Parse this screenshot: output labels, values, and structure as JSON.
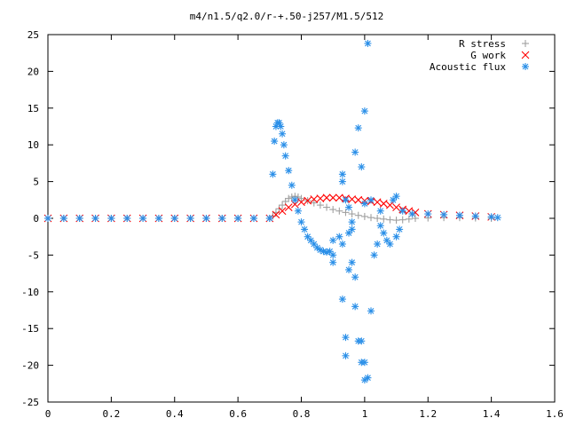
{
  "chart_data": {
    "type": "scatter",
    "title": "m4/n1.5/q2.0/r-+.50-j257/M1.5/512",
    "xlabel": "",
    "ylabel": "",
    "xlim": [
      0,
      1.6
    ],
    "ylim": [
      -25,
      25
    ],
    "x_ticks": [
      "0",
      "0.2",
      "0.4",
      "0.6",
      "0.8",
      "1",
      "1.2",
      "1.4",
      "1.6"
    ],
    "y_ticks": [
      "25",
      "20",
      "15",
      "10",
      "5",
      "0",
      "-5",
      "-10",
      "-15",
      "-20",
      "-25"
    ],
    "x_tick_values": [
      0,
      0.2,
      0.4,
      0.6,
      0.8,
      1.0,
      1.2,
      1.4,
      1.6
    ],
    "y_tick_values": [
      25,
      20,
      15,
      10,
      5,
      0,
      -5,
      -10,
      -15,
      -20,
      -25
    ],
    "grid": false,
    "legend_position": "top-right",
    "series": [
      {
        "name": "R stress",
        "marker": "plus",
        "color": "#a0a0a0",
        "points": [
          [
            0.0,
            0.0
          ],
          [
            0.05,
            0.0
          ],
          [
            0.1,
            0.0
          ],
          [
            0.15,
            0.0
          ],
          [
            0.2,
            0.0
          ],
          [
            0.25,
            0.0
          ],
          [
            0.3,
            0.0
          ],
          [
            0.35,
            0.0
          ],
          [
            0.4,
            0.0
          ],
          [
            0.45,
            0.0
          ],
          [
            0.5,
            0.0
          ],
          [
            0.55,
            0.0
          ],
          [
            0.6,
            0.0
          ],
          [
            0.65,
            0.0
          ],
          [
            0.7,
            0.0
          ],
          [
            0.71,
            0.3
          ],
          [
            0.72,
            0.8
          ],
          [
            0.73,
            1.3
          ],
          [
            0.74,
            1.8
          ],
          [
            0.75,
            2.3
          ],
          [
            0.76,
            2.7
          ],
          [
            0.77,
            2.9
          ],
          [
            0.78,
            3.0
          ],
          [
            0.79,
            2.9
          ],
          [
            0.8,
            2.7
          ],
          [
            0.82,
            2.4
          ],
          [
            0.84,
            2.1
          ],
          [
            0.86,
            1.8
          ],
          [
            0.88,
            1.5
          ],
          [
            0.9,
            1.2
          ],
          [
            0.92,
            1.0
          ],
          [
            0.94,
            0.8
          ],
          [
            0.96,
            0.6
          ],
          [
            0.98,
            0.4
          ],
          [
            1.0,
            0.25
          ],
          [
            1.02,
            0.1
          ],
          [
            1.04,
            0.0
          ],
          [
            1.06,
            -0.1
          ],
          [
            1.08,
            -0.2
          ],
          [
            1.1,
            -0.25
          ],
          [
            1.12,
            -0.2
          ],
          [
            1.14,
            -0.1
          ],
          [
            1.16,
            0.0
          ],
          [
            1.2,
            0.05
          ],
          [
            1.25,
            0.1
          ],
          [
            1.3,
            0.1
          ],
          [
            1.35,
            0.05
          ],
          [
            1.4,
            0.0
          ]
        ]
      },
      {
        "name": "G work",
        "marker": "cross",
        "color": "#ff0000",
        "points": [
          [
            0.0,
            0.0
          ],
          [
            0.05,
            0.0
          ],
          [
            0.1,
            0.0
          ],
          [
            0.15,
            0.0
          ],
          [
            0.2,
            0.0
          ],
          [
            0.25,
            0.0
          ],
          [
            0.3,
            0.0
          ],
          [
            0.35,
            0.0
          ],
          [
            0.4,
            0.0
          ],
          [
            0.45,
            0.0
          ],
          [
            0.5,
            0.0
          ],
          [
            0.55,
            0.0
          ],
          [
            0.6,
            0.0
          ],
          [
            0.65,
            0.0
          ],
          [
            0.7,
            0.0
          ],
          [
            0.72,
            0.5
          ],
          [
            0.74,
            1.0
          ],
          [
            0.76,
            1.5
          ],
          [
            0.78,
            1.9
          ],
          [
            0.8,
            2.2
          ],
          [
            0.82,
            2.4
          ],
          [
            0.84,
            2.6
          ],
          [
            0.86,
            2.7
          ],
          [
            0.88,
            2.8
          ],
          [
            0.9,
            2.8
          ],
          [
            0.92,
            2.8
          ],
          [
            0.94,
            2.7
          ],
          [
            0.96,
            2.6
          ],
          [
            0.98,
            2.5
          ],
          [
            1.0,
            2.4
          ],
          [
            1.02,
            2.3
          ],
          [
            1.04,
            2.2
          ],
          [
            1.06,
            2.0
          ],
          [
            1.08,
            1.8
          ],
          [
            1.1,
            1.5
          ],
          [
            1.12,
            1.2
          ],
          [
            1.14,
            1.0
          ],
          [
            1.16,
            0.8
          ],
          [
            1.2,
            0.6
          ],
          [
            1.25,
            0.5
          ],
          [
            1.3,
            0.4
          ],
          [
            1.35,
            0.3
          ],
          [
            1.4,
            0.2
          ]
        ]
      },
      {
        "name": "Acoustic flux",
        "marker": "star",
        "color": "#2a8fe8",
        "points": [
          [
            0.0,
            0.0
          ],
          [
            0.05,
            0.0
          ],
          [
            0.1,
            0.0
          ],
          [
            0.15,
            0.0
          ],
          [
            0.2,
            0.0
          ],
          [
            0.25,
            0.0
          ],
          [
            0.3,
            0.0
          ],
          [
            0.35,
            0.0
          ],
          [
            0.4,
            0.0
          ],
          [
            0.45,
            0.0
          ],
          [
            0.5,
            0.0
          ],
          [
            0.55,
            0.0
          ],
          [
            0.6,
            0.0
          ],
          [
            0.65,
            0.0
          ],
          [
            0.7,
            0.0
          ],
          [
            0.71,
            6.0
          ],
          [
            0.715,
            10.5
          ],
          [
            0.72,
            12.5
          ],
          [
            0.725,
            13.0
          ],
          [
            0.73,
            13.0
          ],
          [
            0.735,
            12.5
          ],
          [
            0.74,
            11.5
          ],
          [
            0.745,
            10.0
          ],
          [
            0.75,
            8.5
          ],
          [
            0.76,
            6.5
          ],
          [
            0.77,
            4.5
          ],
          [
            0.78,
            2.5
          ],
          [
            0.79,
            1.0
          ],
          [
            0.8,
            -0.5
          ],
          [
            0.81,
            -1.5
          ],
          [
            0.82,
            -2.5
          ],
          [
            0.83,
            -3.0
          ],
          [
            0.84,
            -3.5
          ],
          [
            0.85,
            -4.0
          ],
          [
            0.86,
            -4.3
          ],
          [
            0.87,
            -4.5
          ],
          [
            0.88,
            -4.6
          ],
          [
            0.89,
            -4.5
          ],
          [
            0.9,
            -5.0
          ],
          [
            0.9,
            -6.0
          ],
          [
            0.9,
            -3.0
          ],
          [
            0.92,
            -2.5
          ],
          [
            0.93,
            -3.5
          ],
          [
            0.93,
            -11.0
          ],
          [
            0.94,
            -16.2
          ],
          [
            0.94,
            -18.7
          ],
          [
            0.95,
            -7.0
          ],
          [
            0.95,
            -2.0
          ],
          [
            0.96,
            -6.0
          ],
          [
            0.96,
            -1.5
          ],
          [
            0.97,
            -8.0
          ],
          [
            0.97,
            -12.0
          ],
          [
            0.98,
            -16.7
          ],
          [
            0.99,
            -19.6
          ],
          [
            1.0,
            -22.0
          ],
          [
            1.01,
            -21.7
          ],
          [
            1.0,
            -19.6
          ],
          [
            0.99,
            -16.7
          ],
          [
            0.93,
            6.0
          ],
          [
            0.93,
            5.0
          ],
          [
            0.94,
            2.5
          ],
          [
            0.95,
            1.5
          ],
          [
            0.96,
            -0.5
          ],
          [
            0.97,
            9.0
          ],
          [
            0.98,
            12.3
          ],
          [
            0.99,
            7.0
          ],
          [
            1.0,
            14.6
          ],
          [
            1.01,
            23.8
          ],
          [
            1.0,
            2.0
          ],
          [
            1.02,
            2.5
          ],
          [
            1.02,
            -12.6
          ],
          [
            1.03,
            -5.0
          ],
          [
            1.04,
            -3.5
          ],
          [
            1.05,
            1.0
          ],
          [
            1.05,
            -1.0
          ],
          [
            1.06,
            -2.0
          ],
          [
            1.07,
            -3.0
          ],
          [
            1.08,
            -3.5
          ],
          [
            1.09,
            2.5
          ],
          [
            1.1,
            3.0
          ],
          [
            1.1,
            -2.5
          ],
          [
            1.11,
            -1.5
          ],
          [
            1.12,
            1.0
          ],
          [
            1.15,
            0.6
          ],
          [
            1.2,
            0.6
          ],
          [
            1.25,
            0.5
          ],
          [
            1.3,
            0.4
          ],
          [
            1.35,
            0.3
          ],
          [
            1.4,
            0.2
          ],
          [
            1.42,
            0.1
          ]
        ]
      }
    ]
  }
}
